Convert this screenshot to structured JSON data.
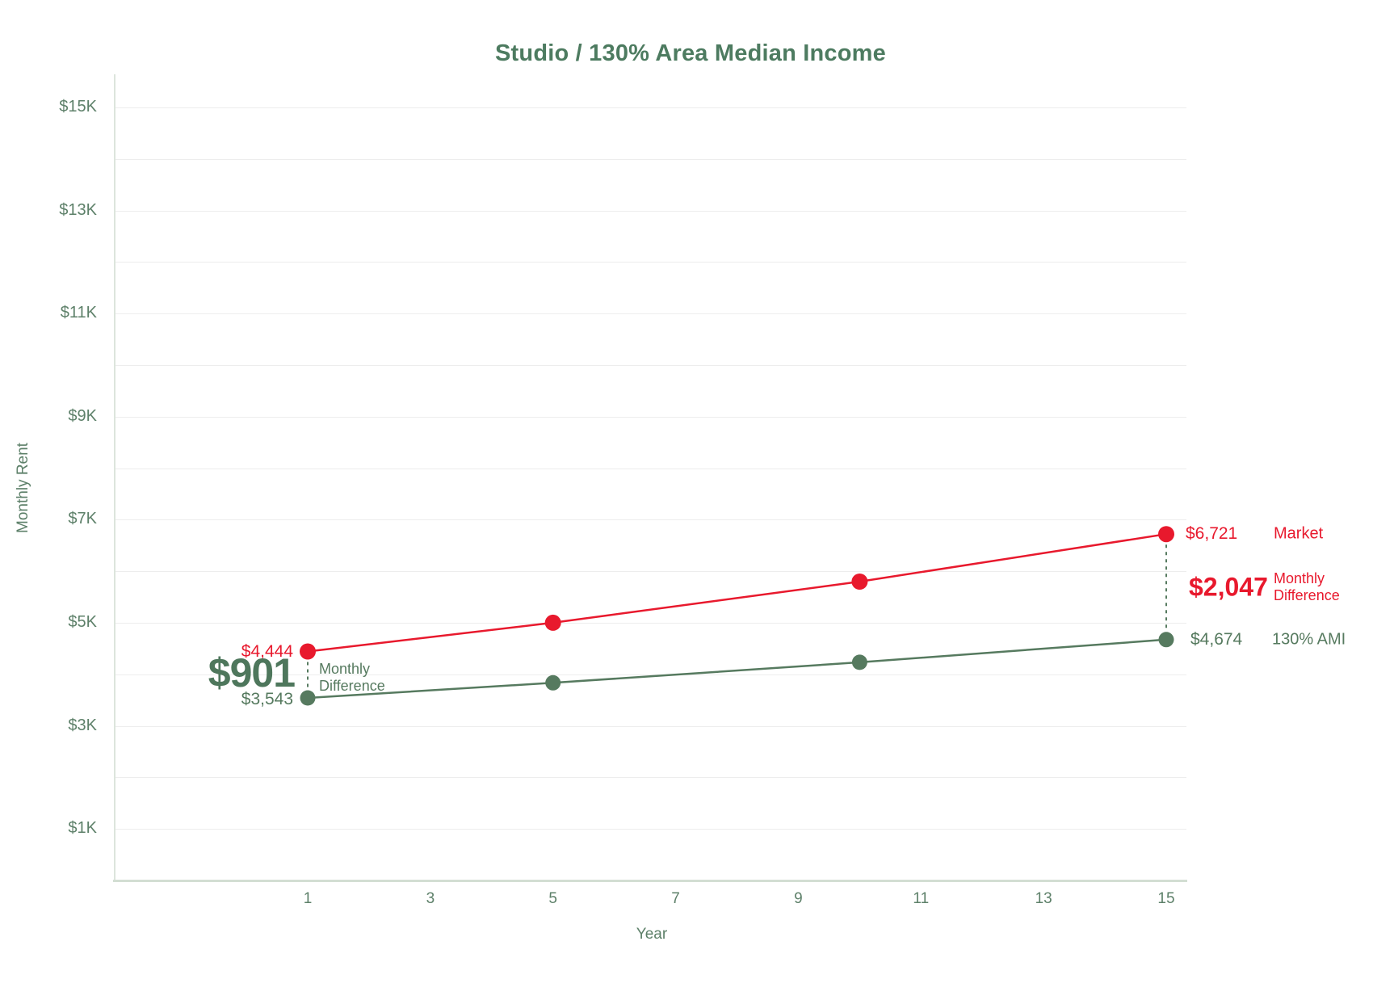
{
  "chart_data": {
    "type": "line",
    "title": "Studio / 130% Area Median Income",
    "xlabel": "Year",
    "ylabel": "Monthly Rent",
    "ylim": [
      0,
      15700
    ],
    "y_grid_step": 1000,
    "grid": "horizontal-only",
    "legend_position": "inline-right-of-last-point",
    "series": [
      {
        "name": "Market",
        "key": "market",
        "color": "#e8192d",
        "x": [
          1,
          5,
          10,
          15
        ],
        "values": [
          4444,
          5002,
          5799,
          6721
        ]
      },
      {
        "name": "130% AMI",
        "key": "ami",
        "color": "#567a5f",
        "x": [
          1,
          5,
          10,
          15
        ],
        "values": [
          3543,
          3835,
          4234,
          4674
        ]
      }
    ],
    "annotations_note": "dashed vertical connectors between series at year 1 and year 15 showing monthly difference"
  },
  "y_axis": {
    "title": "Monthly Rent",
    "ticks": [
      {
        "label": "$15K",
        "value": 15000
      },
      {
        "label": "$13K",
        "value": 13000
      },
      {
        "label": "$11K",
        "value": 11000
      },
      {
        "label": "$9K",
        "value": 9000
      },
      {
        "label": "$7K",
        "value": 7000
      },
      {
        "label": "$5K",
        "value": 5000
      },
      {
        "label": "$3K",
        "value": 3000
      },
      {
        "label": "$1K",
        "value": 1000
      }
    ]
  },
  "x_axis": {
    "title": "Year",
    "ticks": [
      {
        "label": "1",
        "value": 1
      },
      {
        "label": "3",
        "value": 3
      },
      {
        "label": "5",
        "value": 5
      },
      {
        "label": "7",
        "value": 7
      },
      {
        "label": "9",
        "value": 9
      },
      {
        "label": "11",
        "value": 11
      },
      {
        "label": "13",
        "value": 13
      },
      {
        "label": "15",
        "value": 15
      }
    ]
  },
  "annotations": {
    "start": {
      "market_value": "$4,444",
      "difference_value": "$901",
      "difference_label_line1": "Monthly",
      "difference_label_line2": "Difference",
      "ami_value": "$3,543"
    },
    "end": {
      "market_value": "$6,721",
      "market_label": "Market",
      "difference_value": "$2,047",
      "difference_label_line1": "Monthly",
      "difference_label_line2": "Difference",
      "ami_value": "$4,674",
      "ami_label": "130% AMI"
    }
  },
  "colors": {
    "market_red": "#e8192d",
    "ami_green": "#567a5f",
    "title_green": "#4d7b60",
    "tick_green": "#5d8069",
    "gridline": "#ededed",
    "axis_line": "#dce5dc",
    "background": "#ffffff"
  }
}
